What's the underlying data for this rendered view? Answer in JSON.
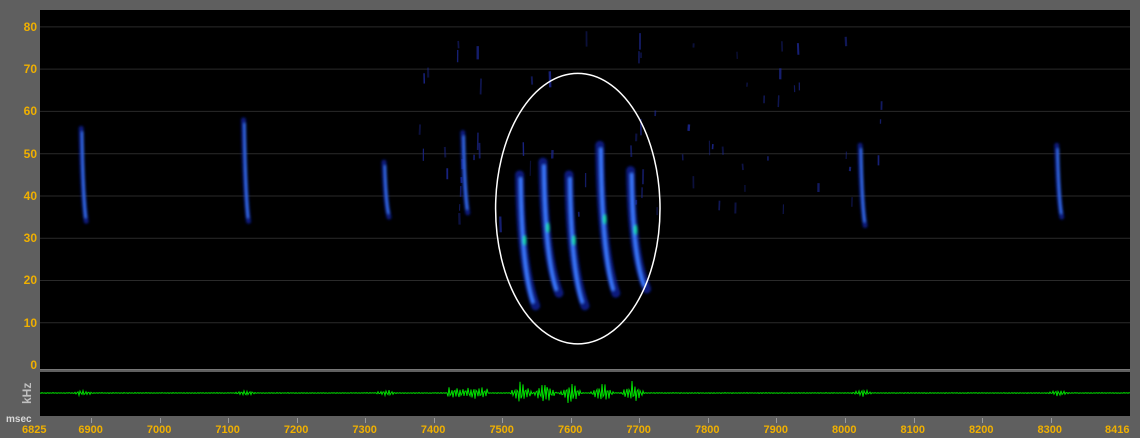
{
  "axes": {
    "y_unit": "kHz",
    "x_unit": "msec",
    "y_ticks": [
      "0",
      "10",
      "20",
      "30",
      "40",
      "50",
      "60",
      "70",
      "80"
    ],
    "x_start": "6825",
    "x_end": "8416",
    "x_ticks": [
      "6900",
      "7000",
      "7100",
      "7200",
      "7300",
      "7400",
      "7500",
      "7600",
      "7700",
      "7800",
      "7900",
      "8000",
      "8100",
      "8200",
      "8300"
    ]
  },
  "colors": {
    "tick_label": "#f0b000",
    "spectrogram_bg": "#000000",
    "waveform": "#00e000",
    "highlight_ellipse": "#ffffff"
  },
  "chart_data": {
    "type": "heatmap",
    "xlim": [
      6825,
      8416
    ],
    "ylim": [
      0,
      84
    ],
    "grid": true,
    "highlight_region": {
      "x_range": [
        7490,
        7730
      ],
      "y_range": [
        5,
        69
      ]
    },
    "calls": [
      {
        "t": 6888,
        "f_high": 56,
        "f_low": 34
      },
      {
        "t": 7125,
        "f_high": 58,
        "f_low": 34
      },
      {
        "t": 7330,
        "f_high": 48,
        "f_low": 35
      },
      {
        "t": 7445,
        "f_high": 55,
        "f_low": 36
      },
      {
        "t": 7528,
        "f_high": 45,
        "f_low": 14
      },
      {
        "t": 7562,
        "f_high": 48,
        "f_low": 17
      },
      {
        "t": 7600,
        "f_high": 45,
        "f_low": 14
      },
      {
        "t": 7645,
        "f_high": 52,
        "f_low": 17
      },
      {
        "t": 7690,
        "f_high": 46,
        "f_low": 18
      },
      {
        "t": 8025,
        "f_high": 52,
        "f_low": 33
      },
      {
        "t": 8312,
        "f_high": 52,
        "f_low": 35
      }
    ]
  }
}
